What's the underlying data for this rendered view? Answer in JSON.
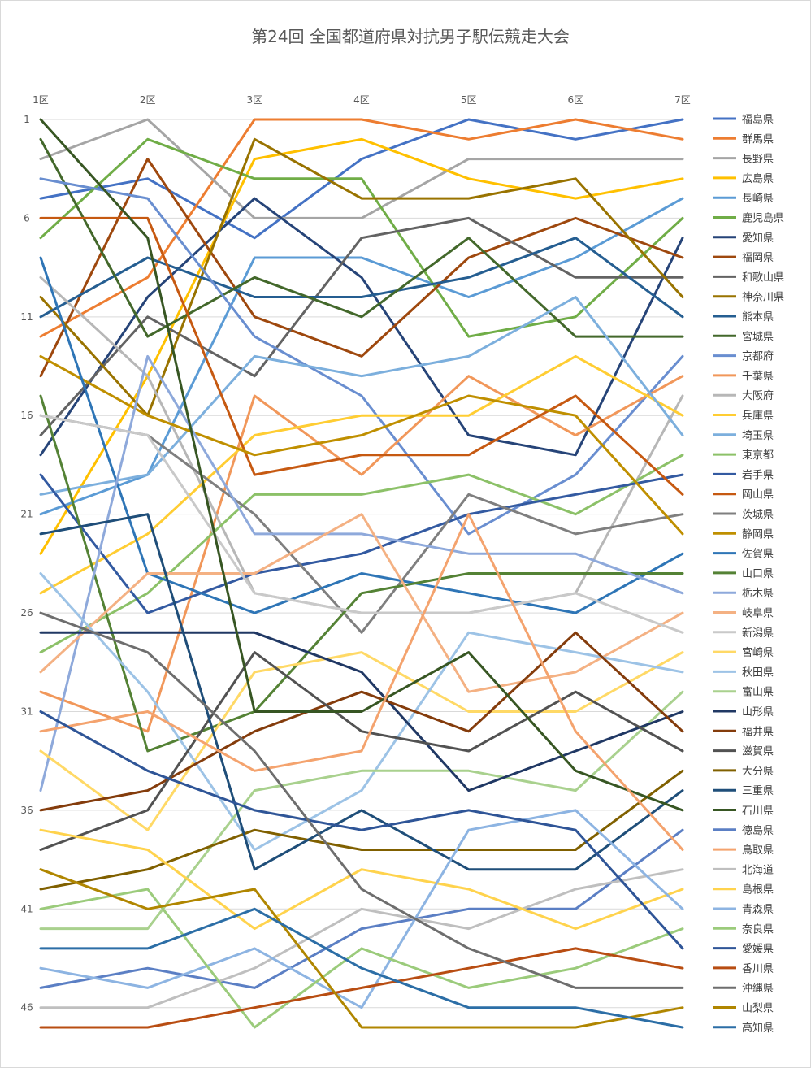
{
  "chart_data": {
    "type": "line",
    "title": "第24回 全国都道府県対抗男子駅伝競走大会",
    "x": [
      "1区",
      "2区",
      "3区",
      "4区",
      "5区",
      "6区",
      "7区"
    ],
    "y_ticks": [
      1,
      6,
      11,
      16,
      21,
      26,
      31,
      36,
      41,
      46
    ],
    "ylim": [
      1,
      47
    ],
    "y_inverted": true,
    "grid": "horizontal",
    "legend_position": "right",
    "series": [
      {
        "name": "福島県",
        "color": "#4472C4",
        "values": [
          5,
          4,
          7,
          3,
          1,
          2,
          1
        ]
      },
      {
        "name": "群馬県",
        "color": "#ED7D31",
        "values": [
          12,
          9,
          1,
          1,
          2,
          1,
          2
        ]
      },
      {
        "name": "長野県",
        "color": "#A5A5A5",
        "values": [
          3,
          1,
          6,
          6,
          3,
          3,
          3
        ]
      },
      {
        "name": "広島県",
        "color": "#FFC000",
        "values": [
          23,
          14,
          3,
          2,
          4,
          5,
          4
        ]
      },
      {
        "name": "長崎県",
        "color": "#5B9BD5",
        "values": [
          21,
          19,
          8,
          8,
          10,
          8,
          5
        ]
      },
      {
        "name": "鹿児島県",
        "color": "#70AD47",
        "values": [
          7,
          2,
          4,
          4,
          12,
          11,
          6
        ]
      },
      {
        "name": "愛知県",
        "color": "#264478",
        "values": [
          18,
          10,
          5,
          9,
          17,
          18,
          7
        ]
      },
      {
        "name": "福岡県",
        "color": "#9E480E",
        "values": [
          14,
          3,
          11,
          13,
          8,
          6,
          8
        ]
      },
      {
        "name": "和歌山県",
        "color": "#636363",
        "values": [
          17,
          11,
          14,
          7,
          6,
          9,
          9
        ]
      },
      {
        "name": "神奈川県",
        "color": "#997300",
        "values": [
          10,
          16,
          2,
          5,
          5,
          4,
          10
        ]
      },
      {
        "name": "熊本県",
        "color": "#255E91",
        "values": [
          11,
          8,
          10,
          10,
          9,
          7,
          11
        ]
      },
      {
        "name": "宮城県",
        "color": "#43682B",
        "values": [
          2,
          12,
          9,
          11,
          7,
          12,
          12
        ]
      },
      {
        "name": "京都府",
        "color": "#698ED0",
        "values": [
          4,
          5,
          12,
          15,
          22,
          19,
          13
        ]
      },
      {
        "name": "千葉県",
        "color": "#F1975A",
        "values": [
          30,
          32,
          15,
          19,
          14,
          17,
          14
        ]
      },
      {
        "name": "大阪府",
        "color": "#B7B7B7",
        "values": [
          9,
          14,
          25,
          26,
          26,
          25,
          15
        ]
      },
      {
        "name": "兵庫県",
        "color": "#FFCD33",
        "values": [
          25,
          22,
          17,
          16,
          16,
          13,
          16
        ]
      },
      {
        "name": "埼玉県",
        "color": "#7CAFDD",
        "values": [
          20,
          19,
          13,
          14,
          13,
          10,
          17
        ]
      },
      {
        "name": "東京都",
        "color": "#8CC168",
        "values": [
          28,
          25,
          20,
          20,
          19,
          21,
          18
        ]
      },
      {
        "name": "岩手県",
        "color": "#335AA1",
        "values": [
          19,
          26,
          24,
          23,
          21,
          20,
          19
        ]
      },
      {
        "name": "岡山県",
        "color": "#C65911",
        "values": [
          6,
          6,
          19,
          18,
          18,
          15,
          20
        ]
      },
      {
        "name": "茨城県",
        "color": "#7F7F7F",
        "values": [
          16,
          17,
          21,
          27,
          20,
          22,
          21
        ]
      },
      {
        "name": "静岡県",
        "color": "#BF8F00",
        "values": [
          13,
          16,
          18,
          17,
          15,
          16,
          22
        ]
      },
      {
        "name": "佐賀県",
        "color": "#2E75B6",
        "values": [
          8,
          24,
          26,
          24,
          25,
          26,
          23
        ]
      },
      {
        "name": "山口県",
        "color": "#548235",
        "values": [
          15,
          33,
          31,
          25,
          24,
          24,
          24
        ]
      },
      {
        "name": "栃木県",
        "color": "#8EA9DB",
        "values": [
          35,
          13,
          22,
          22,
          23,
          23,
          25
        ]
      },
      {
        "name": "岐阜県",
        "color": "#F4B183",
        "values": [
          29,
          24,
          24,
          21,
          30,
          29,
          26
        ]
      },
      {
        "name": "新潟県",
        "color": "#C9C9C9",
        "values": [
          16,
          17,
          25,
          26,
          26,
          25,
          27
        ]
      },
      {
        "name": "宮崎県",
        "color": "#FFD966",
        "values": [
          33,
          37,
          29,
          28,
          31,
          31,
          28
        ]
      },
      {
        "name": "秋田県",
        "color": "#9DC3E6",
        "values": [
          24,
          30,
          38,
          35,
          27,
          28,
          29
        ]
      },
      {
        "name": "富山県",
        "color": "#A9D18E",
        "values": [
          42,
          42,
          35,
          34,
          34,
          35,
          30
        ]
      },
      {
        "name": "山形県",
        "color": "#203864",
        "values": [
          27,
          27,
          27,
          29,
          35,
          33,
          31
        ]
      },
      {
        "name": "福井県",
        "color": "#843C0C",
        "values": [
          36,
          35,
          32,
          30,
          32,
          27,
          32
        ]
      },
      {
        "name": "滋賀県",
        "color": "#525252",
        "values": [
          38,
          36,
          28,
          32,
          33,
          30,
          33
        ]
      },
      {
        "name": "大分県",
        "color": "#806000",
        "values": [
          40,
          39,
          37,
          38,
          38,
          38,
          34
        ]
      },
      {
        "name": "三重県",
        "color": "#1F4E79",
        "values": [
          22,
          21,
          39,
          36,
          39,
          39,
          35
        ]
      },
      {
        "name": "石川県",
        "color": "#375623",
        "values": [
          1,
          7,
          31,
          31,
          28,
          34,
          36
        ]
      },
      {
        "name": "徳島県",
        "color": "#5B7FC4",
        "values": [
          45,
          44,
          45,
          42,
          41,
          41,
          37
        ]
      },
      {
        "name": "鳥取県",
        "color": "#F4A36E",
        "values": [
          32,
          31,
          34,
          33,
          21,
          32,
          38
        ]
      },
      {
        "name": "北海道",
        "color": "#BFBFBF",
        "values": [
          46,
          46,
          44,
          41,
          42,
          40,
          39
        ]
      },
      {
        "name": "島根県",
        "color": "#FFD34D",
        "values": [
          37,
          38,
          42,
          39,
          40,
          42,
          40
        ]
      },
      {
        "name": "青森県",
        "color": "#8DB4E2",
        "values": [
          44,
          45,
          43,
          46,
          37,
          36,
          41
        ]
      },
      {
        "name": "奈良県",
        "color": "#9BCB7B",
        "values": [
          41,
          40,
          47,
          43,
          45,
          44,
          42
        ]
      },
      {
        "name": "愛媛県",
        "color": "#2F5597",
        "values": [
          31,
          34,
          36,
          37,
          36,
          37,
          43
        ]
      },
      {
        "name": "香川県",
        "color": "#B84D12",
        "values": [
          47,
          47,
          46,
          45,
          44,
          43,
          44
        ]
      },
      {
        "name": "沖縄県",
        "color": "#6E6E6E",
        "values": [
          26,
          28,
          33,
          40,
          43,
          45,
          45
        ]
      },
      {
        "name": "山梨県",
        "color": "#B08600",
        "values": [
          39,
          41,
          40,
          47,
          47,
          47,
          46
        ]
      },
      {
        "name": "高知県",
        "color": "#2C6EA6",
        "values": [
          43,
          43,
          41,
          44,
          46,
          46,
          47
        ]
      }
    ]
  }
}
